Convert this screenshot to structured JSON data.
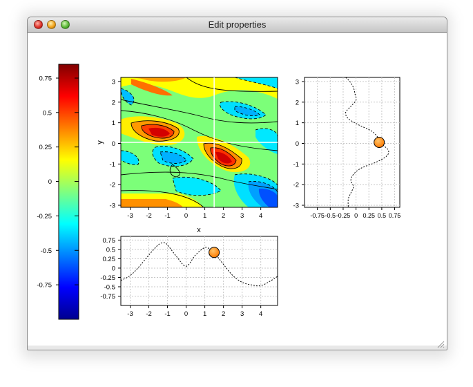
{
  "window": {
    "title": "Edit properties"
  },
  "colorbar": {
    "tick_labels": [
      "0.75",
      "0.5",
      "0.25",
      "0",
      "-0.25",
      "-0.5",
      "-0.75"
    ],
    "ticks": [
      0.75,
      0.5,
      0.25,
      0,
      -0.25,
      -0.5,
      -0.75
    ],
    "range": [
      -1.0,
      0.85
    ],
    "colormap": "jet"
  },
  "chart_data": [
    {
      "type": "heatmap",
      "xlabel": "x",
      "ylabel": "y",
      "xlim": [
        -3.5,
        4.9
      ],
      "ylim": [
        -3.1,
        3.2
      ],
      "x_tick_labels": [
        "-3",
        "-2",
        "-1",
        "0",
        "1",
        "2",
        "3",
        "4"
      ],
      "y_tick_labels": [
        "3",
        "2",
        "1",
        "0",
        "-1",
        "-2",
        "-3"
      ],
      "crosshair": {
        "x": 1.5,
        "y": 0.05
      }
    },
    {
      "type": "line",
      "title": "",
      "xlim": [
        -3.5,
        4.9
      ],
      "ylim": [
        -1.0,
        0.85
      ],
      "x_tick_labels": [
        "-3",
        "-2",
        "-1",
        "0",
        "1",
        "2",
        "3",
        "4"
      ],
      "y_tick_labels": [
        "0.75",
        "0.5",
        "0.25",
        "0",
        "-0.25",
        "-0.5",
        "-0.75"
      ],
      "x": [
        -3.5,
        -3,
        -2.5,
        -2,
        -1.5,
        -1.2,
        -1,
        -0.5,
        0,
        0.5,
        1,
        1.3,
        1.5,
        2,
        2.5,
        3,
        3.5,
        4,
        4.5,
        4.9
      ],
      "y": [
        -0.33,
        -0.2,
        0.05,
        0.35,
        0.62,
        0.68,
        0.62,
        0.3,
        0.05,
        0.35,
        0.55,
        0.5,
        0.42,
        0.1,
        -0.2,
        -0.38,
        -0.45,
        -0.47,
        -0.35,
        -0.22
      ],
      "marker": {
        "x": 1.5,
        "y": 0.42,
        "color": "#ff8c00"
      },
      "grid": true
    },
    {
      "type": "line",
      "title": "",
      "xlim": [
        -1.0,
        0.85
      ],
      "ylim": [
        -3.1,
        3.2
      ],
      "x_tick_labels": [
        "-0.75",
        "-0.5",
        "-0.25",
        "0",
        "0.25",
        "0.5",
        "0.75"
      ],
      "y_tick_labels": [
        "3",
        "2",
        "1",
        "0",
        "-1",
        "-2",
        "-3"
      ],
      "y": [
        3.2,
        3.0,
        2.7,
        2.4,
        2.1,
        1.8,
        1.5,
        1.2,
        0.9,
        0.6,
        0.3,
        0.05,
        -0.3,
        -0.6,
        -0.9,
        -1.2,
        -1.5,
        -1.8,
        -2.1,
        -2.4,
        -2.7,
        -3.1
      ],
      "x": [
        -0.2,
        -0.12,
        -0.05,
        -0.02,
        0.0,
        -0.1,
        -0.2,
        -0.15,
        0.05,
        0.3,
        0.42,
        0.45,
        0.62,
        0.6,
        0.4,
        0.1,
        -0.05,
        -0.1,
        -0.05,
        -0.1,
        -0.15,
        -0.15
      ],
      "marker": {
        "x": 0.45,
        "y": 0.05,
        "color": "#ff8c00"
      },
      "grid": true
    }
  ]
}
